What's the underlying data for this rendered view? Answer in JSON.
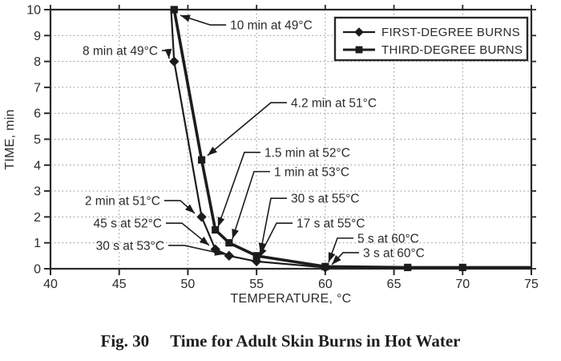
{
  "figure": {
    "caption_label": "Fig. 30",
    "caption_title": "Time for Adult Skin Burns in Hot Water"
  },
  "colors": {
    "line": "#1c1c1c",
    "grid": "#8f8f8f",
    "frame": "#2a2a2a",
    "text": "#2b2b2b",
    "background": "#ffffff"
  },
  "chart_data": {
    "type": "line",
    "title": "",
    "xlabel": "TEMPERATURE, °C",
    "ylabel": "TIME, min",
    "xlim": [
      40,
      75
    ],
    "ylim": [
      0,
      10
    ],
    "x_ticks": [
      40,
      45,
      50,
      55,
      60,
      65,
      70,
      75
    ],
    "y_ticks": [
      0,
      1,
      2,
      3,
      4,
      5,
      6,
      7,
      8,
      9,
      10
    ],
    "grid": "dotted",
    "legend_position": "top-right",
    "series": [
      {
        "name": "FIRST-DEGREE BURNS",
        "marker": "diamond",
        "line_width": 2.2,
        "points": [
          [
            49,
            8
          ],
          [
            51,
            2
          ],
          [
            52,
            0.75
          ],
          [
            53,
            0.5
          ],
          [
            55,
            0.283
          ],
          [
            60,
            0.05
          ]
        ],
        "line_points": [
          [
            48.78,
            10
          ],
          [
            49,
            8
          ],
          [
            51,
            2
          ],
          [
            52,
            0.75
          ],
          [
            53,
            0.5
          ],
          [
            55,
            0.283
          ],
          [
            60,
            0.05
          ]
        ]
      },
      {
        "name": "THIRD-DEGREE BURNS",
        "marker": "square",
        "line_width": 3.6,
        "points": [
          [
            49,
            10
          ],
          [
            51,
            4.2
          ],
          [
            52,
            1.5
          ],
          [
            53,
            1
          ],
          [
            55,
            0.5
          ],
          [
            60,
            0.083
          ],
          [
            66,
            0.05
          ],
          [
            70,
            0.05
          ]
        ],
        "line_points": [
          [
            49,
            10
          ],
          [
            51,
            4.2
          ],
          [
            52,
            1.5
          ],
          [
            53,
            1
          ],
          [
            55,
            0.5
          ],
          [
            60,
            0.083
          ],
          [
            66,
            0.05
          ],
          [
            70,
            0.05
          ],
          [
            75,
            0.05
          ]
        ]
      }
    ],
    "annotations": [
      {
        "text": "10 min at 49°C",
        "target": [
          49,
          10
        ],
        "label": [
          52.78,
          9.41
        ],
        "tip": [
          49.45,
          9.78
        ],
        "side": "right",
        "dash": 20
      },
      {
        "text": "8 min at 49°C",
        "target": [
          49,
          8
        ],
        "label": [
          48.11,
          8.42
        ],
        "tip": [
          48.63,
          8.11
        ],
        "side": "left",
        "dash": 8
      },
      {
        "text": "4.2 min at 51°C",
        "target": [
          51,
          4.2
        ],
        "label": [
          57.21,
          6.41
        ],
        "tip": [
          51.43,
          4.37
        ],
        "side": "right",
        "dash": 20
      },
      {
        "text": "1.5 min at 52°C",
        "target": [
          52,
          1.5
        ],
        "label": [
          55.28,
          4.49
        ],
        "tip": [
          52.19,
          1.61
        ],
        "side": "right",
        "dash": 20
      },
      {
        "text": "1 min at 53°C",
        "target": [
          53,
          1
        ],
        "label": [
          55.98,
          3.75
        ],
        "tip": [
          53.24,
          1.15
        ],
        "side": "right",
        "dash": 20
      },
      {
        "text": "2 min at 51°C",
        "target": [
          51,
          2
        ],
        "label": [
          48.28,
          2.63
        ],
        "tip": [
          50.5,
          2.14
        ],
        "side": "left",
        "dash": 20
      },
      {
        "text": "30 s at 55°C",
        "target": [
          55,
          0.5
        ],
        "label": [
          57.21,
          2.72
        ],
        "tip": [
          55.28,
          0.62
        ],
        "side": "right",
        "dash": 20
      },
      {
        "text": "45 s at 52°C",
        "target": [
          52,
          0.75
        ],
        "label": [
          48.4,
          1.76
        ],
        "tip": [
          51.55,
          0.9
        ],
        "side": "left",
        "dash": 20
      },
      {
        "text": "17 s at 55°C",
        "target": [
          55,
          0.283
        ],
        "label": [
          57.62,
          1.76
        ],
        "tip": [
          55.17,
          0.43
        ],
        "side": "right",
        "dash": 20
      },
      {
        "text": "5 s at 60°C",
        "target": [
          60,
          0.083
        ],
        "label": [
          62.05,
          1.18
        ],
        "tip": [
          60.24,
          0.25
        ],
        "side": "right",
        "dash": 20
      },
      {
        "text": "30 s at 53°C",
        "target": [
          53,
          0.5
        ],
        "label": [
          48.58,
          0.9
        ],
        "tip": [
          52.66,
          0.56
        ],
        "side": "left",
        "dash": 20
      },
      {
        "text": "3 s at 60°C",
        "target": [
          60,
          0.05
        ],
        "label": [
          62.46,
          0.62
        ],
        "tip": [
          60.48,
          0.16
        ],
        "side": "right",
        "dash": 20
      }
    ]
  }
}
